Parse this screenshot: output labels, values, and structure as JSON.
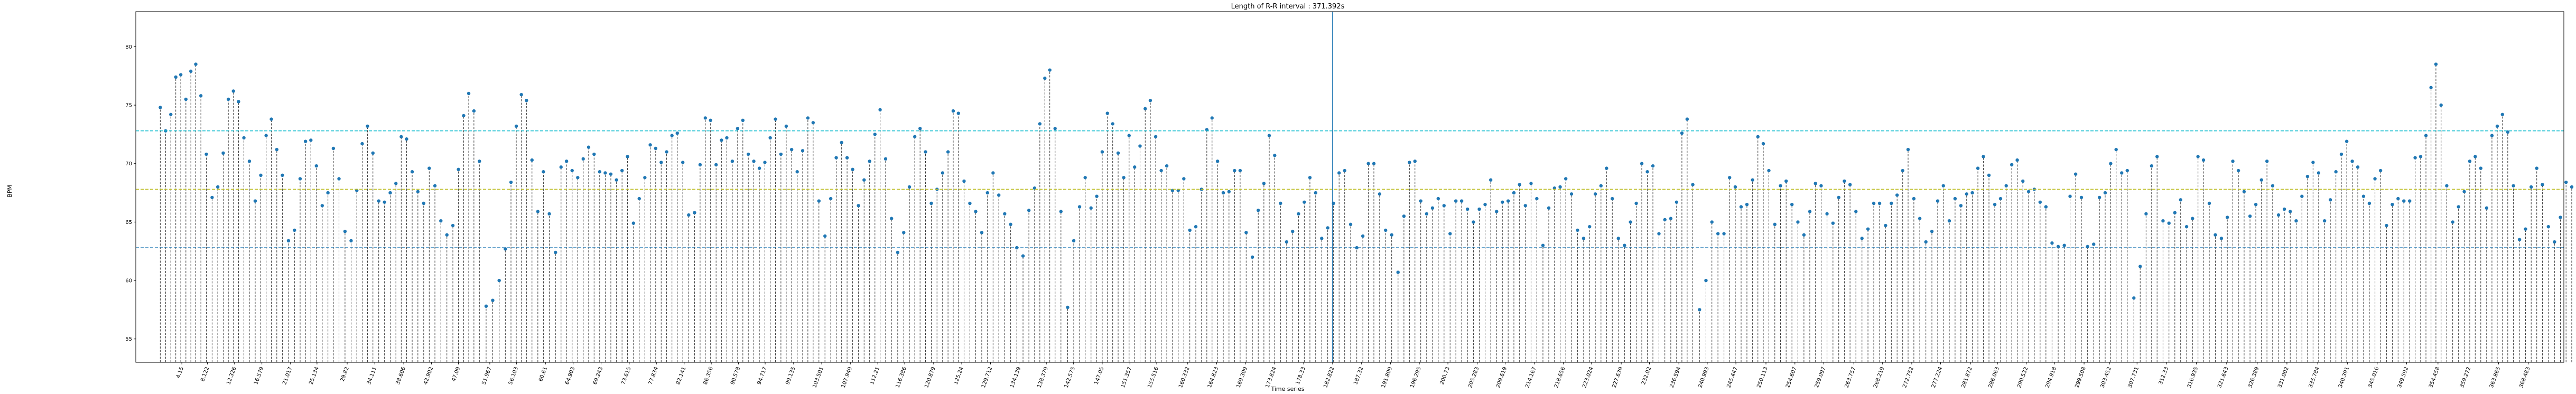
{
  "chart_data": {
    "type": "stem",
    "title": "Length of R-R interval : 371.392s",
    "xlabel": "Time series",
    "ylabel": "BPM",
    "ylim": [
      53,
      83
    ],
    "xlim": [
      -3,
      374
    ],
    "yticks": [
      55,
      60,
      65,
      70,
      75,
      80
    ],
    "xtick_labels": [
      "4.15",
      "8.122",
      "12.326",
      "16.579",
      "21.017",
      "25.134",
      "29.82",
      "34.111",
      "38.606",
      "42.902",
      "47.09",
      "51.967",
      "56.103",
      "60.61",
      "64.903",
      "69.243",
      "73.615",
      "77.834",
      "82.141",
      "86.356",
      "90.578",
      "94.717",
      "99.135",
      "103.501",
      "107.949",
      "112.21",
      "116.386",
      "120.879",
      "125.24",
      "129.712",
      "134.139",
      "138.379",
      "142.575",
      "147.05",
      "151.357",
      "155.516",
      "160.332",
      "164.823",
      "169.309",
      "173.824",
      "178.33",
      "182.822",
      "187.32",
      "191.809",
      "196.295",
      "200.73",
      "205.283",
      "209.619",
      "214.167",
      "218.656",
      "223.024",
      "227.639",
      "232.02",
      "236.594",
      "240.993",
      "245.447",
      "250.113",
      "254.607",
      "259.097",
      "263.757",
      "268.219",
      "272.752",
      "277.224",
      "281.872",
      "286.063",
      "290.532",
      "294.918",
      "299.508",
      "303.452",
      "307.731",
      "312.33",
      "316.935",
      "321.643",
      "326.389",
      "331.002",
      "335.784",
      "340.391",
      "345.016",
      "349.592",
      "354.458",
      "359.272",
      "363.865",
      "368.483"
    ],
    "xtick_positions": [
      4.15,
      8.122,
      12.326,
      16.579,
      21.017,
      25.134,
      29.82,
      34.111,
      38.606,
      42.902,
      47.09,
      51.967,
      56.103,
      60.61,
      64.903,
      69.243,
      73.615,
      77.834,
      82.141,
      86.356,
      90.578,
      94.717,
      99.135,
      103.501,
      107.949,
      112.21,
      116.386,
      120.879,
      125.24,
      129.712,
      134.139,
      138.379,
      142.575,
      147.05,
      151.357,
      155.516,
      160.332,
      164.823,
      169.309,
      173.824,
      178.33,
      182.822,
      187.32,
      191.809,
      196.295,
      200.73,
      205.283,
      209.619,
      214.167,
      218.656,
      223.024,
      227.639,
      232.02,
      236.594,
      240.993,
      245.447,
      250.113,
      254.607,
      259.097,
      263.757,
      268.219,
      272.752,
      277.224,
      281.872,
      286.063,
      290.532,
      294.918,
      299.508,
      303.452,
      307.731,
      312.33,
      316.935,
      321.643,
      326.389,
      331.002,
      335.784,
      340.391,
      345.016,
      349.592,
      354.458,
      359.272,
      363.865,
      368.483
    ],
    "hlines": [
      {
        "y": 72.8,
        "color": "#17becf"
      },
      {
        "y": 67.8,
        "color": "#bcbd22"
      },
      {
        "y": 62.8,
        "color": "#1f77b4"
      }
    ],
    "vline": {
      "x": 182.822,
      "color": "#1f77b4"
    },
    "marker_color": "#1f77b4",
    "stem_color": "#333333",
    "y_bpm": [
      74.8,
      72.8,
      74.2,
      77.4,
      77.6,
      75.5,
      77.9,
      78.5,
      75.8,
      70.8,
      67.1,
      68.0,
      70.9,
      75.5,
      76.2,
      75.3,
      72.2,
      70.2,
      66.8,
      69.0,
      72.4,
      73.8,
      71.2,
      69.0,
      63.4,
      64.3,
      68.7,
      71.9,
      72.0,
      69.8,
      66.4,
      67.5,
      71.3,
      68.7,
      64.2,
      63.4,
      67.7,
      71.7,
      73.2,
      70.9,
      66.8,
      66.7,
      67.5,
      68.3,
      72.3,
      72.1,
      69.3,
      67.6,
      66.6,
      69.6,
      68.1,
      65.1,
      63.9,
      64.7,
      69.5,
      74.1,
      76.0,
      74.5,
      70.2,
      57.8,
      58.3,
      60.0,
      62.7,
      68.4,
      73.2,
      75.9,
      75.4,
      70.3,
      65.9,
      69.3,
      65.7,
      62.4,
      69.7,
      70.2,
      69.4,
      68.8,
      70.4,
      71.4,
      70.8,
      69.3,
      69.2,
      69.1,
      68.6,
      69.4,
      70.6,
      64.9,
      67.0,
      68.8,
      71.6,
      71.3,
      70.1,
      71.0,
      72.4,
      72.6,
      70.1,
      65.6,
      65.8,
      69.9,
      73.9,
      73.7,
      69.9,
      72.0,
      72.2,
      70.2,
      73.0,
      73.7,
      70.8,
      70.2,
      69.6,
      70.1,
      72.2,
      73.8,
      70.8,
      73.2,
      71.2,
      69.3,
      71.1,
      73.9,
      73.5,
      66.8,
      63.8,
      67.0,
      70.5,
      71.8,
      70.5,
      69.5,
      66.4,
      68.6,
      70.2,
      72.5,
      74.6,
      70.4,
      65.3,
      62.4,
      64.1,
      68.0,
      72.3,
      73.0,
      71.0,
      66.6,
      67.8,
      69.2,
      71.0,
      74.5,
      74.3,
      68.5,
      66.6,
      65.9,
      64.1,
      67.5,
      69.2,
      67.3,
      65.7,
      64.8,
      62.8,
      62.1,
      66.0,
      67.9,
      73.4,
      77.3,
      78.0,
      73.0,
      65.9,
      57.7,
      63.4,
      66.3,
      68.8,
      66.2,
      67.2,
      71.0,
      74.3,
      73.4,
      70.9,
      68.8,
      72.4,
      69.7,
      71.5,
      74.7,
      75.4,
      72.3,
      69.4,
      69.8,
      67.7,
      67.7,
      68.7,
      64.3,
      64.6,
      67.8,
      72.9,
      73.9,
      70.2,
      67.5,
      67.6,
      69.4,
      69.4,
      64.1,
      62.0,
      66.0,
      68.3,
      72.4,
      70.7,
      66.6,
      63.3,
      64.2,
      65.7,
      66.7,
      68.8,
      67.5,
      63.6,
      64.5,
      66.6,
      69.2,
      69.4,
      64.8,
      62.8,
      63.8,
      70.0,
      70.0,
      67.4,
      64.3,
      63.9,
      60.7,
      65.5,
      70.1,
      70.2,
      66.8,
      65.7,
      66.2,
      67.0,
      66.4,
      64.0,
      66.8,
      66.8,
      66.1,
      65.0,
      66.1,
      66.5,
      68.6,
      65.9,
      66.7,
      66.8,
      67.5,
      68.2,
      66.4,
      68.3,
      67.0,
      63.0,
      66.2,
      67.9,
      68.0,
      68.7,
      67.4,
      64.3,
      63.6,
      64.6,
      67.4,
      68.1,
      69.6,
      67.0,
      63.6,
      63.0,
      65.0,
      66.6,
      70.0,
      69.3,
      69.8,
      64.0,
      65.2,
      65.3,
      66.7,
      72.6,
      73.8,
      68.2,
      57.5,
      60.0,
      65.0,
      64.0,
      64.0,
      68.8,
      68.0,
      66.3,
      66.5,
      68.6,
      72.3,
      71.7,
      69.4,
      64.8,
      68.1,
      68.5,
      66.5,
      65.0,
      63.9,
      65.9,
      68.3,
      68.1,
      65.7,
      64.9,
      67.1,
      68.5,
      68.2,
      65.9,
      63.6,
      64.4,
      66.6,
      66.6,
      64.7,
      66.6,
      67.3,
      69.4,
      71.2,
      67.0,
      65.3,
      63.3,
      64.2,
      66.8,
      68.1,
      65.1,
      67.0,
      66.4,
      67.4,
      67.5,
      69.6,
      70.6,
      69.0,
      66.5,
      67.0,
      68.1,
      69.9,
      70.3,
      68.5,
      67.6,
      67.8,
      66.7,
      66.3,
      63.2,
      62.9,
      63.0,
      67.2,
      69.1,
      67.1,
      62.9,
      63.1,
      67.1,
      67.5,
      70.0,
      71.2,
      69.2,
      69.4,
      58.5,
      61.2,
      65.7,
      69.8,
      70.6,
      65.1,
      64.9,
      65.8,
      66.9,
      64.6,
      65.3,
      70.6,
      70.3,
      66.6,
      63.9,
      63.6,
      65.4,
      70.2,
      69.4,
      67.6,
      65.5,
      66.5,
      68.6,
      70.2,
      68.1,
      65.6,
      66.1,
      65.9,
      65.1,
      67.2,
      68.9,
      70.1,
      69.2,
      65.1,
      66.9,
      69.3,
      70.8,
      71.9,
      70.2,
      69.7,
      67.2,
      66.6,
      68.7,
      69.4,
      64.7,
      66.5,
      67.0,
      66.8,
      66.8,
      70.5,
      70.6,
      72.4,
      76.5,
      78.5,
      75.0,
      68.1,
      65.0,
      66.3,
      67.6,
      70.2,
      70.6,
      69.6,
      66.2,
      72.4,
      73.2,
      74.2,
      72.7,
      68.1,
      63.5,
      64.4,
      68.0,
      69.6,
      68.2,
      64.6,
      63.3,
      65.4,
      68.4,
      68.0,
      64.0,
      60.5,
      60.8,
      63.2,
      65.1,
      65.8,
      64.9,
      61.6,
      59.6,
      59.7,
      65.1,
      64.6,
      60.9,
      60.6,
      65.2,
      63.2,
      61.0,
      62.2,
      64.9,
      64.8,
      63.7,
      63.9,
      66.0,
      68.1,
      63.9,
      61.6,
      62.9,
      63.8,
      66.0,
      68.6,
      62.1,
      62.3,
      63.9,
      65.6,
      68.6,
      66.0,
      61.9,
      65.4,
      66.1,
      69.7,
      69.1,
      66.9,
      62.6,
      56.2,
      59.0,
      62.0,
      63.0,
      64.6,
      62.9,
      63.1,
      59.2,
      61.9,
      61.4,
      66.0,
      69.9,
      69.6,
      66.4,
      59.8,
      56.7,
      57.4,
      64.1,
      68.0,
      67.1,
      62.1,
      59.4,
      60.9,
      62.2,
      65.2
    ]
  }
}
